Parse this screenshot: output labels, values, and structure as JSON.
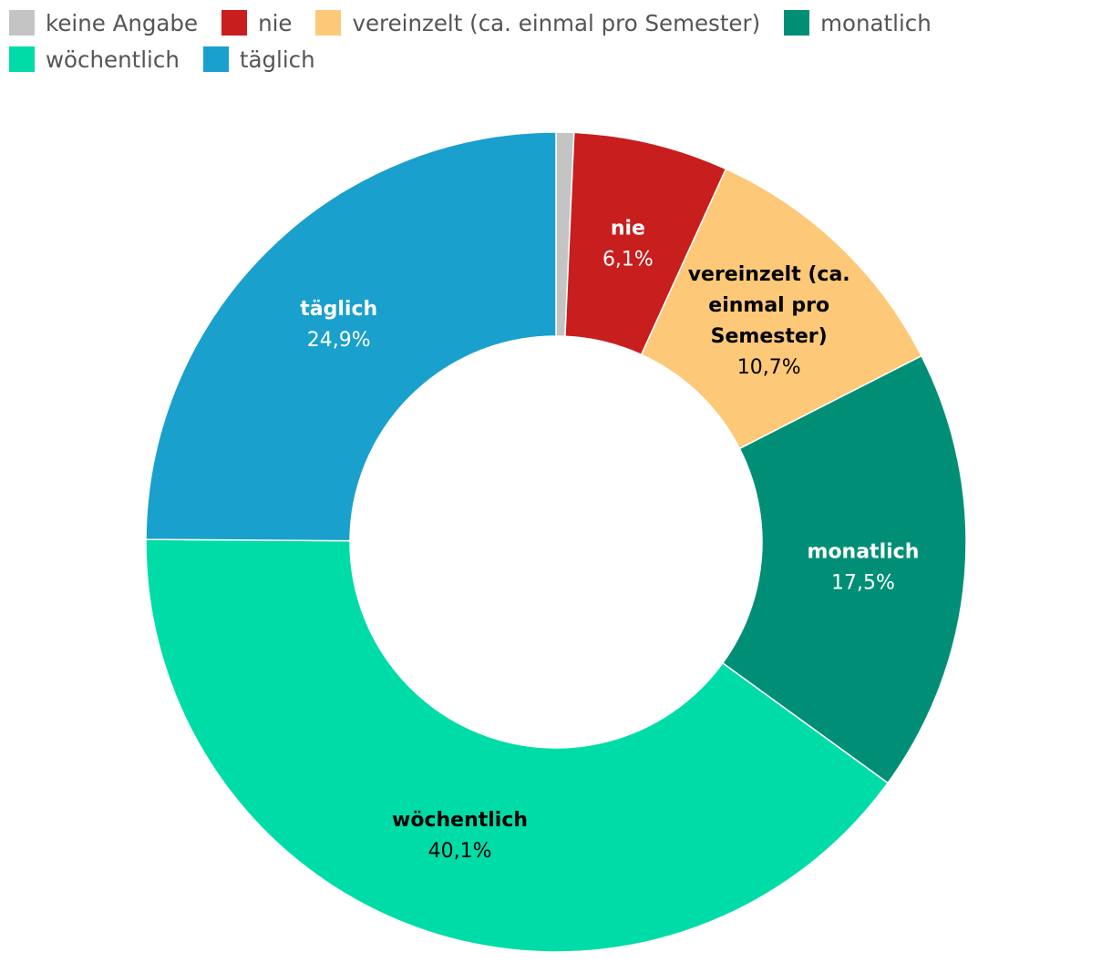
{
  "chart_data": {
    "type": "pie",
    "title": "",
    "categories": [
      "keine Angabe",
      "nie",
      "vereinzelt (ca. einmal pro Semester)",
      "monatlich",
      "wöchentlich",
      "täglich"
    ],
    "values": [
      0.7,
      6.1,
      10.7,
      17.5,
      40.1,
      24.9
    ],
    "value_labels": [
      "",
      "6,1%",
      "10,7%",
      "17,5%",
      "40,1%",
      "24,9%"
    ],
    "slice_labels": [
      [],
      [
        "nie"
      ],
      [
        "vereinzelt (ca.",
        "einmal pro",
        "Semester)"
      ],
      [
        "monatlich"
      ],
      [
        "wöchentlich"
      ],
      [
        "täglich"
      ]
    ],
    "colors": [
      "#c4c4c4",
      "#c81e1e",
      "#fdc878",
      "#008f76",
      "#00dca8",
      "#1aa0cd"
    ],
    "label_colors": [
      "#000000",
      "#ffffff",
      "#000000",
      "#ffffff",
      "#000000",
      "#ffffff"
    ],
    "legend_position": "top-left",
    "donut": true
  }
}
